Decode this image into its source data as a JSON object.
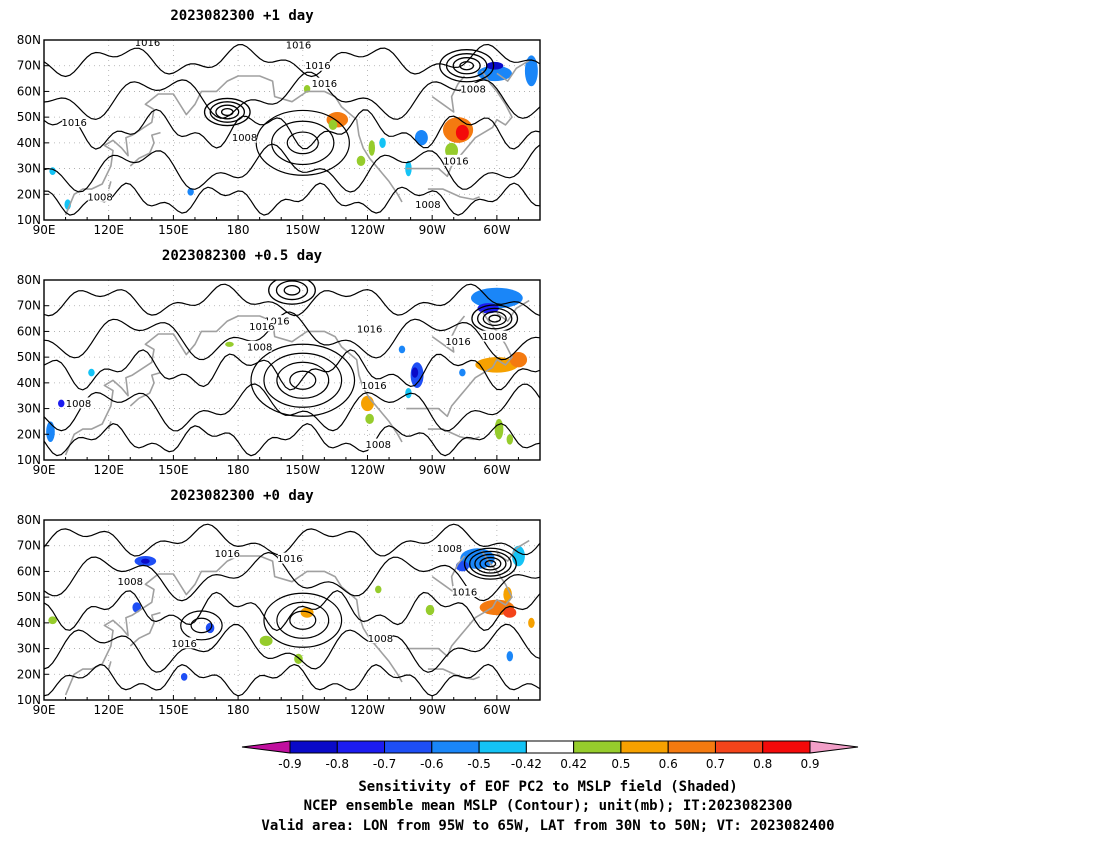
{
  "panels": [
    {
      "title": "2023082300  +1  day",
      "contour_labels": [
        {
          "text": "1016",
          "lon": 208,
          "lat": 78
        },
        {
          "text": "1016",
          "lon": 138,
          "lat": 79
        },
        {
          "text": "1016",
          "lon": 217,
          "lat": 70
        },
        {
          "text": "1016",
          "lon": 220,
          "lat": 63
        },
        {
          "text": "1016",
          "lon": 104,
          "lat": 48
        },
        {
          "text": "1008",
          "lon": 183,
          "lat": 42
        },
        {
          "text": "1008",
          "lon": 289,
          "lat": 61
        },
        {
          "text": "1016",
          "lon": 281,
          "lat": 33
        },
        {
          "text": "1008",
          "lon": 116,
          "lat": 19
        },
        {
          "text": "1008",
          "lon": 268,
          "lat": 16
        }
      ]
    },
    {
      "title": "2023082300  +0.5  day",
      "contour_labels": [
        {
          "text": "1016",
          "lon": 198,
          "lat": 64
        },
        {
          "text": "1016",
          "lon": 191,
          "lat": 62
        },
        {
          "text": "1016",
          "lon": 241,
          "lat": 61
        },
        {
          "text": "1016",
          "lon": 282,
          "lat": 56
        },
        {
          "text": "1008",
          "lon": 190,
          "lat": 54
        },
        {
          "text": "1008",
          "lon": 299,
          "lat": 58
        },
        {
          "text": "1016",
          "lon": 243,
          "lat": 39
        },
        {
          "text": "1008",
          "lon": 106,
          "lat": 32
        },
        {
          "text": "1008",
          "lon": 245,
          "lat": 16
        }
      ]
    },
    {
      "title": "2023082300  +0  day",
      "contour_labels": [
        {
          "text": "1016",
          "lon": 175,
          "lat": 67
        },
        {
          "text": "1016",
          "lon": 204,
          "lat": 65
        },
        {
          "text": "1008",
          "lon": 130,
          "lat": 56
        },
        {
          "text": "1008",
          "lon": 278,
          "lat": 69
        },
        {
          "text": "1016",
          "lon": 285,
          "lat": 52
        },
        {
          "text": "1016",
          "lon": 155,
          "lat": 32
        },
        {
          "text": "1008",
          "lon": 246,
          "lat": 34
        }
      ]
    }
  ],
  "x_ticks": [
    "90E",
    "120E",
    "150E",
    "180",
    "150W",
    "120W",
    "90W",
    "60W"
  ],
  "x_tick_lons": [
    90,
    120,
    150,
    180,
    210,
    240,
    270,
    300
  ],
  "y_ticks": [
    "80N",
    "70N",
    "60N",
    "50N",
    "40N",
    "30N",
    "20N",
    "10N"
  ],
  "y_tick_lats": [
    80,
    70,
    60,
    50,
    40,
    30,
    20,
    10
  ],
  "lon_range": [
    90,
    320
  ],
  "lat_range": [
    10,
    80
  ],
  "colorbar": {
    "labels": [
      "-0.9",
      "-0.8",
      "-0.7",
      "-0.6",
      "-0.5",
      "-0.42",
      "0.42",
      "0.5",
      "0.6",
      "0.7",
      "0.8",
      "0.9"
    ],
    "colors": [
      "#c0109e",
      "#0a0ac8",
      "#1c1cf0",
      "#1e4ef5",
      "#1a86f8",
      "#14c3f5",
      "#ffffff",
      "#96cc2c",
      "#f6a100",
      "#f47a10",
      "#f4441a",
      "#f40a0a",
      "#f29fc8"
    ]
  },
  "captions": [
    "Sensitivity of EOF PC2 to MSLP field (Shaded)",
    "NCEP ensemble mean MSLP (Contour); unit(mb); IT:2023082300",
    "Valid area: LON from 95W to 65W, LAT from 30N to 50N; VT: 2023082400"
  ],
  "shading": [
    [
      {
        "lon": 226,
        "lat": 49,
        "rx": 5,
        "ry": 3,
        "c": "#f47a10"
      },
      {
        "lon": 224,
        "lat": 47,
        "rx": 2,
        "ry": 2,
        "c": "#96cc2c"
      },
      {
        "lon": 282,
        "lat": 45,
        "rx": 7,
        "ry": 5,
        "c": "#f47a10"
      },
      {
        "lon": 284,
        "lat": 44,
        "rx": 3,
        "ry": 3,
        "c": "#f40a0a"
      },
      {
        "lon": 279,
        "lat": 37,
        "rx": 3,
        "ry": 3,
        "c": "#96cc2c"
      },
      {
        "lon": 299,
        "lat": 67,
        "rx": 8,
        "ry": 3,
        "c": "#1a86f8"
      },
      {
        "lon": 299,
        "lat": 70,
        "rx": 4,
        "ry": 1.5,
        "c": "#0a0ac8"
      },
      {
        "lon": 316,
        "lat": 68,
        "rx": 3,
        "ry": 6,
        "c": "#1a86f8"
      },
      {
        "lon": 265,
        "lat": 42,
        "rx": 3,
        "ry": 3,
        "c": "#1a86f8"
      },
      {
        "lon": 247,
        "lat": 40,
        "rx": 1.5,
        "ry": 2,
        "c": "#14c3f5"
      },
      {
        "lon": 259,
        "lat": 30,
        "rx": 1.5,
        "ry": 3,
        "c": "#14c3f5"
      },
      {
        "lon": 237,
        "lat": 33,
        "rx": 2,
        "ry": 2,
        "c": "#96cc2c"
      },
      {
        "lon": 242,
        "lat": 38,
        "rx": 1.5,
        "ry": 3,
        "c": "#96cc2c"
      },
      {
        "lon": 212,
        "lat": 61,
        "rx": 1.5,
        "ry": 1.5,
        "c": "#96cc2c"
      },
      {
        "lon": 101,
        "lat": 16,
        "rx": 1.5,
        "ry": 2,
        "c": "#14c3f5"
      },
      {
        "lon": 94,
        "lat": 29,
        "rx": 1.5,
        "ry": 1.5,
        "c": "#14c3f5"
      },
      {
        "lon": 158,
        "lat": 21,
        "rx": 1.5,
        "ry": 1.5,
        "c": "#1a86f8"
      }
    ],
    [
      {
        "lon": 300,
        "lat": 73,
        "rx": 12,
        "ry": 4,
        "c": "#1a86f8"
      },
      {
        "lon": 296,
        "lat": 69,
        "rx": 5,
        "ry": 2,
        "c": "#1c1cf0"
      },
      {
        "lon": 263,
        "lat": 43,
        "rx": 3,
        "ry": 5,
        "c": "#1e4ef5"
      },
      {
        "lon": 262,
        "lat": 44,
        "rx": 1.5,
        "ry": 2,
        "c": "#0a0ac8"
      },
      {
        "lon": 259,
        "lat": 36,
        "rx": 1.5,
        "ry": 2,
        "c": "#14c3f5"
      },
      {
        "lon": 240,
        "lat": 32,
        "rx": 3,
        "ry": 3,
        "c": "#f6a100"
      },
      {
        "lon": 241,
        "lat": 26,
        "rx": 2,
        "ry": 2,
        "c": "#96cc2c"
      },
      {
        "lon": 300,
        "lat": 47,
        "rx": 10,
        "ry": 3,
        "c": "#f6a100"
      },
      {
        "lon": 310,
        "lat": 49,
        "rx": 4,
        "ry": 3,
        "c": "#f47a10"
      },
      {
        "lon": 301,
        "lat": 22,
        "rx": 2,
        "ry": 4,
        "c": "#96cc2c"
      },
      {
        "lon": 306,
        "lat": 18,
        "rx": 1.5,
        "ry": 2,
        "c": "#96cc2c"
      },
      {
        "lon": 93,
        "lat": 21,
        "rx": 2,
        "ry": 4,
        "c": "#1a86f8"
      },
      {
        "lon": 98,
        "lat": 32,
        "rx": 1.5,
        "ry": 1.5,
        "c": "#1c1cf0"
      },
      {
        "lon": 112,
        "lat": 44,
        "rx": 1.5,
        "ry": 1.5,
        "c": "#14c3f5"
      },
      {
        "lon": 176,
        "lat": 55,
        "rx": 2,
        "ry": 1,
        "c": "#96cc2c"
      },
      {
        "lon": 256,
        "lat": 53,
        "rx": 1.5,
        "ry": 1.5,
        "c": "#1a86f8"
      },
      {
        "lon": 284,
        "lat": 44,
        "rx": 1.5,
        "ry": 1.5,
        "c": "#1a86f8"
      }
    ],
    [
      {
        "lon": 137,
        "lat": 64,
        "rx": 5,
        "ry": 2,
        "c": "#1e4ef5"
      },
      {
        "lon": 137,
        "lat": 64,
        "rx": 2,
        "ry": 1,
        "c": "#0a0ac8"
      },
      {
        "lon": 133,
        "lat": 46,
        "rx": 2,
        "ry": 2,
        "c": "#1e4ef5"
      },
      {
        "lon": 291,
        "lat": 65,
        "rx": 8,
        "ry": 4,
        "c": "#1a86f8"
      },
      {
        "lon": 284,
        "lat": 62,
        "rx": 3,
        "ry": 2,
        "c": "#1e4ef5"
      },
      {
        "lon": 310,
        "lat": 66,
        "rx": 3,
        "ry": 4,
        "c": "#14c3f5"
      },
      {
        "lon": 300,
        "lat": 46,
        "rx": 8,
        "ry": 3,
        "c": "#f47a10"
      },
      {
        "lon": 306,
        "lat": 44,
        "rx": 3,
        "ry": 2,
        "c": "#f4441a"
      },
      {
        "lon": 305,
        "lat": 51,
        "rx": 2,
        "ry": 3,
        "c": "#f6a100"
      },
      {
        "lon": 316,
        "lat": 40,
        "rx": 1.5,
        "ry": 2,
        "c": "#f6a100"
      },
      {
        "lon": 212,
        "lat": 44,
        "rx": 3,
        "ry": 2,
        "c": "#f6a100"
      },
      {
        "lon": 193,
        "lat": 33,
        "rx": 3,
        "ry": 2,
        "c": "#96cc2c"
      },
      {
        "lon": 208,
        "lat": 26,
        "rx": 2,
        "ry": 2,
        "c": "#96cc2c"
      },
      {
        "lon": 167,
        "lat": 38,
        "rx": 2,
        "ry": 2,
        "c": "#1e4ef5"
      },
      {
        "lon": 306,
        "lat": 27,
        "rx": 1.5,
        "ry": 2,
        "c": "#1a86f8"
      },
      {
        "lon": 155,
        "lat": 19,
        "rx": 1.5,
        "ry": 1.5,
        "c": "#1e4ef5"
      },
      {
        "lon": 94,
        "lat": 41,
        "rx": 2,
        "ry": 1.5,
        "c": "#96cc2c"
      },
      {
        "lon": 269,
        "lat": 45,
        "rx": 2,
        "ry": 2,
        "c": "#96cc2c"
      },
      {
        "lon": 245,
        "lat": 53,
        "rx": 1.5,
        "ry": 1.5,
        "c": "#96cc2c"
      }
    ]
  ],
  "lows": [
    [
      {
        "lon": 175,
        "lat": 52,
        "rings": 4,
        "r": 2.2
      },
      {
        "lon": 286,
        "lat": 70,
        "rings": 4,
        "r": 2.6
      }
    ],
    [
      {
        "lon": 205,
        "lat": 76,
        "rings": 3,
        "r": 3
      },
      {
        "lon": 299,
        "lat": 65,
        "rings": 4,
        "r": 2.2
      }
    ],
    [
      {
        "lon": 297,
        "lat": 63,
        "rings": 5,
        "r": 2
      }
    ]
  ],
  "highs": [
    [
      {
        "lon": 210,
        "lat": 40,
        "rings": 3,
        "r": 6
      }
    ],
    [
      {
        "lon": 210,
        "lat": 41,
        "rings": 4,
        "r": 5
      }
    ],
    [
      {
        "lon": 210,
        "lat": 41,
        "rings": 3,
        "r": 5
      },
      {
        "lon": 163,
        "lat": 39,
        "rings": 2,
        "r": 4
      }
    ]
  ]
}
